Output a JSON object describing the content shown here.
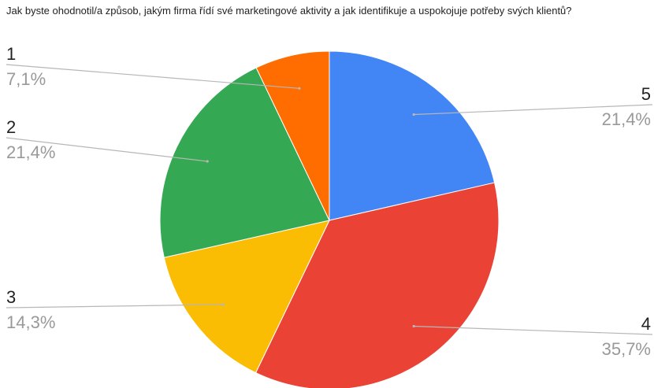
{
  "chart_data": {
    "type": "pie",
    "title": "Jak byste ohodnotil/a způsob, jakým firma řídí své marketingové aktivity a jak identifikuje a uspokojuje potřeby svých klientů?",
    "slices": [
      {
        "label": "5",
        "value": 21.4,
        "percent_label": "21,4%",
        "color": "#4285f4",
        "label_side": "right"
      },
      {
        "label": "4",
        "value": 35.7,
        "percent_label": "35,7%",
        "color": "#ea4335",
        "label_side": "right"
      },
      {
        "label": "3",
        "value": 14.3,
        "percent_label": "14,3%",
        "color": "#fbbc04",
        "label_side": "left"
      },
      {
        "label": "2",
        "value": 21.4,
        "percent_label": "21,4%",
        "color": "#34a853",
        "label_side": "left"
      },
      {
        "label": "1",
        "value": 7.1,
        "percent_label": "7,1%",
        "color": "#ff6d01",
        "label_side": "left"
      }
    ],
    "start_angle": "top",
    "direction": "clockwise",
    "legend": "none",
    "leader_line_color": "#b7b7b7",
    "category_label_color": "#222222",
    "percent_label_color": "#999999"
  }
}
